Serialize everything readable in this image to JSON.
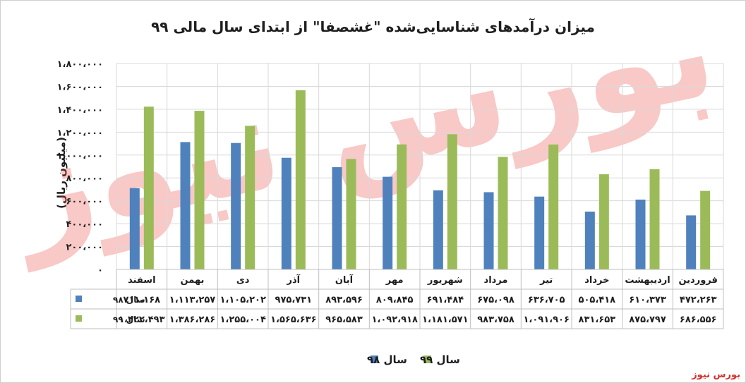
{
  "chart_data": {
    "type": "bar",
    "title": "میزان درآمدهای شناسایی‌شده \"غشصفا\" از ابتدای سال مالی ۹۹",
    "ylabel": "(میلیون ریال)",
    "xlabel": "",
    "categories": [
      "اسفند",
      "بهمن",
      "دی",
      "آذر",
      "آبان",
      "مهر",
      "شهریور",
      "مرداد",
      "تیر",
      "خرداد",
      "اردیبهشت",
      "فروردین"
    ],
    "series": [
      {
        "name": "سال ۹۸",
        "color": "#4f81bd",
        "values": [
          711168,
          1113257,
          1105202,
          975731,
          893596,
          809845,
          691484,
          675098,
          636705,
          505418,
          610373,
          472263
        ],
        "labels": [
          "۷۱۱،۱۶۸",
          "۱،۱۱۳،۲۵۷",
          "۱،۱۰۵،۲۰۲",
          "۹۷۵،۷۳۱",
          "۸۹۳،۵۹۶",
          "۸۰۹،۸۴۵",
          "۶۹۱،۴۸۴",
          "۶۷۵،۰۹۸",
          "۶۳۶،۷۰۵",
          "۵۰۵،۴۱۸",
          "۶۱۰،۳۷۳",
          "۴۷۲،۲۶۳"
        ]
      },
      {
        "name": "سال ۹۹",
        "color": "#9bbb59",
        "values": [
          1422493,
          1386286,
          1255004,
          1565636,
          965583,
          1092918,
          1181571,
          983758,
          1091906,
          831653,
          875797,
          686556
        ],
        "labels": [
          "۱،۴۲۲،۴۹۳",
          "۱،۳۸۶،۲۸۶",
          "۱،۲۵۵،۰۰۴",
          "۱،۵۶۵،۶۳۶",
          "۹۶۵،۵۸۳",
          "۱،۰۹۲،۹۱۸",
          "۱،۱۸۱،۵۷۱",
          "۹۸۳،۷۵۸",
          "۱،۰۹۱،۹۰۶",
          "۸۳۱،۶۵۳",
          "۸۷۵،۷۹۷",
          "۶۸۶،۵۵۶"
        ]
      }
    ],
    "ylim": [
      0,
      1800000
    ],
    "yticks": [
      0,
      200000,
      400000,
      600000,
      800000,
      1000000,
      1200000,
      1400000,
      1600000,
      1800000
    ],
    "ytick_labels": [
      "۰",
      "۲۰۰،۰۰۰",
      "۴۰۰،۰۰۰",
      "۶۰۰،۰۰۰",
      "۸۰۰،۰۰۰",
      "۱،۰۰۰،۰۰۰",
      "۱،۲۰۰،۰۰۰",
      "۱،۴۰۰،۰۰۰",
      "۱،۶۰۰،۰۰۰",
      "۱،۸۰۰،۰۰۰"
    ],
    "grid": true,
    "legend_position": "bottom",
    "data_table": true
  },
  "watermark_text": "بورس نیوز",
  "source_label": "بورس نیوز"
}
